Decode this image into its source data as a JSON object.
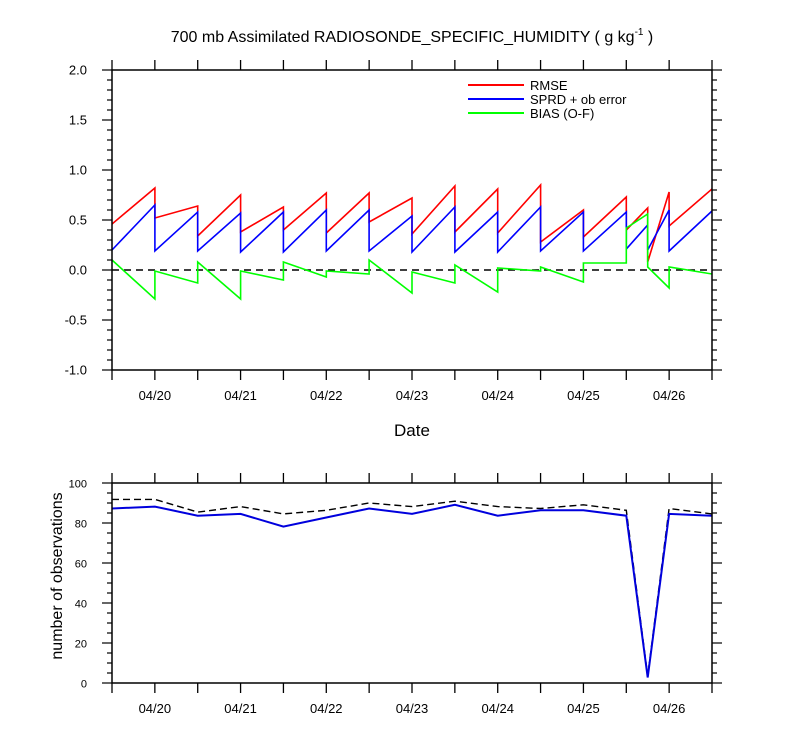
{
  "chart_data": [
    {
      "type": "line",
      "title": "700 mb Assimilated RADIOSONDE_SPECIFIC_HUMIDITY ( g kg",
      "title_sup": "-1",
      "title_end": " )",
      "xlabel": "Date",
      "ylabel": "",
      "ylim": [
        -1.0,
        2.0
      ],
      "y_ticks": [
        "-1.0",
        "-0.5",
        "0.0",
        "0.5",
        "1.0",
        "1.5",
        "2.0"
      ],
      "x_ticks": [
        "04/20",
        "04/21",
        "04/22",
        "04/23",
        "04/24",
        "04/25",
        "04/26"
      ],
      "x_range_days": [
        19.5,
        26.5
      ],
      "legend_position": "top-right",
      "zero_line": "dashed",
      "series": [
        {
          "name": "RMSE",
          "color": "#ff0000",
          "x": [
            19.5,
            20.0,
            20.0,
            20.5,
            20.5,
            21.0,
            21.0,
            21.5,
            21.5,
            22.0,
            22.0,
            22.5,
            22.5,
            23.0,
            23.0,
            23.5,
            23.5,
            24.0,
            24.0,
            24.5,
            24.5,
            25.0,
            25.0,
            25.5,
            25.5,
            25.75,
            25.75,
            26.0,
            26.0,
            26.5
          ],
          "y": [
            0.46,
            0.82,
            0.52,
            0.64,
            0.34,
            0.75,
            0.38,
            0.63,
            0.4,
            0.77,
            0.37,
            0.77,
            0.48,
            0.72,
            0.36,
            0.84,
            0.38,
            0.81,
            0.37,
            0.85,
            0.28,
            0.6,
            0.33,
            0.73,
            0.4,
            0.62,
            0.08,
            0.78,
            0.44,
            0.81
          ]
        },
        {
          "name": "SPRD + ob error",
          "color": "#0000ff",
          "x": [
            19.5,
            20.0,
            20.0,
            20.5,
            20.5,
            21.0,
            21.0,
            21.5,
            21.5,
            22.0,
            22.0,
            22.5,
            22.5,
            23.0,
            23.0,
            23.5,
            23.5,
            24.0,
            24.0,
            24.5,
            24.5,
            25.0,
            25.0,
            25.5,
            25.5,
            25.75,
            25.75,
            26.0,
            26.0,
            26.5
          ],
          "y": [
            0.2,
            0.65,
            0.19,
            0.58,
            0.19,
            0.57,
            0.18,
            0.58,
            0.18,
            0.6,
            0.19,
            0.6,
            0.19,
            0.54,
            0.18,
            0.63,
            0.18,
            0.58,
            0.18,
            0.63,
            0.19,
            0.58,
            0.19,
            0.58,
            0.21,
            0.45,
            0.2,
            0.6,
            0.19,
            0.59
          ]
        },
        {
          "name": "BIAS (O-F)",
          "color": "#00ff00",
          "x": [
            19.5,
            20.0,
            20.0,
            20.5,
            20.5,
            21.0,
            21.0,
            21.5,
            21.5,
            22.0,
            22.0,
            22.5,
            22.5,
            23.0,
            23.0,
            23.5,
            23.5,
            24.0,
            24.0,
            24.5,
            24.5,
            25.0,
            25.0,
            25.5,
            25.5,
            25.75,
            25.75,
            26.0,
            26.0,
            26.5
          ],
          "y": [
            0.1,
            -0.29,
            -0.01,
            -0.13,
            0.08,
            -0.29,
            -0.01,
            -0.1,
            0.08,
            -0.07,
            -0.01,
            -0.04,
            0.1,
            -0.23,
            -0.02,
            -0.13,
            0.05,
            -0.22,
            0.02,
            -0.01,
            0.03,
            -0.12,
            0.07,
            0.07,
            0.42,
            0.56,
            0.03,
            -0.18,
            0.03,
            -0.04
          ]
        }
      ]
    },
    {
      "type": "line",
      "title": "",
      "xlabel": "",
      "ylabel": "number of observations",
      "ylim": [
        0,
        110
      ],
      "y_ticks": [
        "0",
        "20",
        "40",
        "60",
        "80",
        "100"
      ],
      "x_ticks": [
        "04/20",
        "04/21",
        "04/22",
        "04/23",
        "04/24",
        "04/25",
        "04/26"
      ],
      "x_range_days": [
        19.5,
        26.5
      ],
      "series": [
        {
          "style": "dashed",
          "color": "#000000",
          "x": [
            19.5,
            20.0,
            20.5,
            21.0,
            21.5,
            22.0,
            22.5,
            23.0,
            23.5,
            24.0,
            24.5,
            25.0,
            25.5,
            25.75,
            26.0,
            26.5
          ],
          "y": [
            101,
            101,
            94,
            97,
            93,
            95,
            99,
            97,
            100,
            97,
            96,
            98,
            95,
            4,
            96,
            93
          ]
        },
        {
          "style": "solid",
          "color": "#0000dd",
          "x": [
            19.5,
            20.0,
            20.5,
            21.0,
            21.5,
            22.0,
            22.5,
            23.0,
            23.5,
            24.0,
            24.5,
            25.0,
            25.5,
            25.75,
            26.0,
            26.5
          ],
          "y": [
            96,
            97,
            92,
            93,
            86,
            91,
            96,
            93,
            98,
            92,
            95,
            95,
            92,
            3,
            93,
            92
          ]
        }
      ]
    }
  ]
}
